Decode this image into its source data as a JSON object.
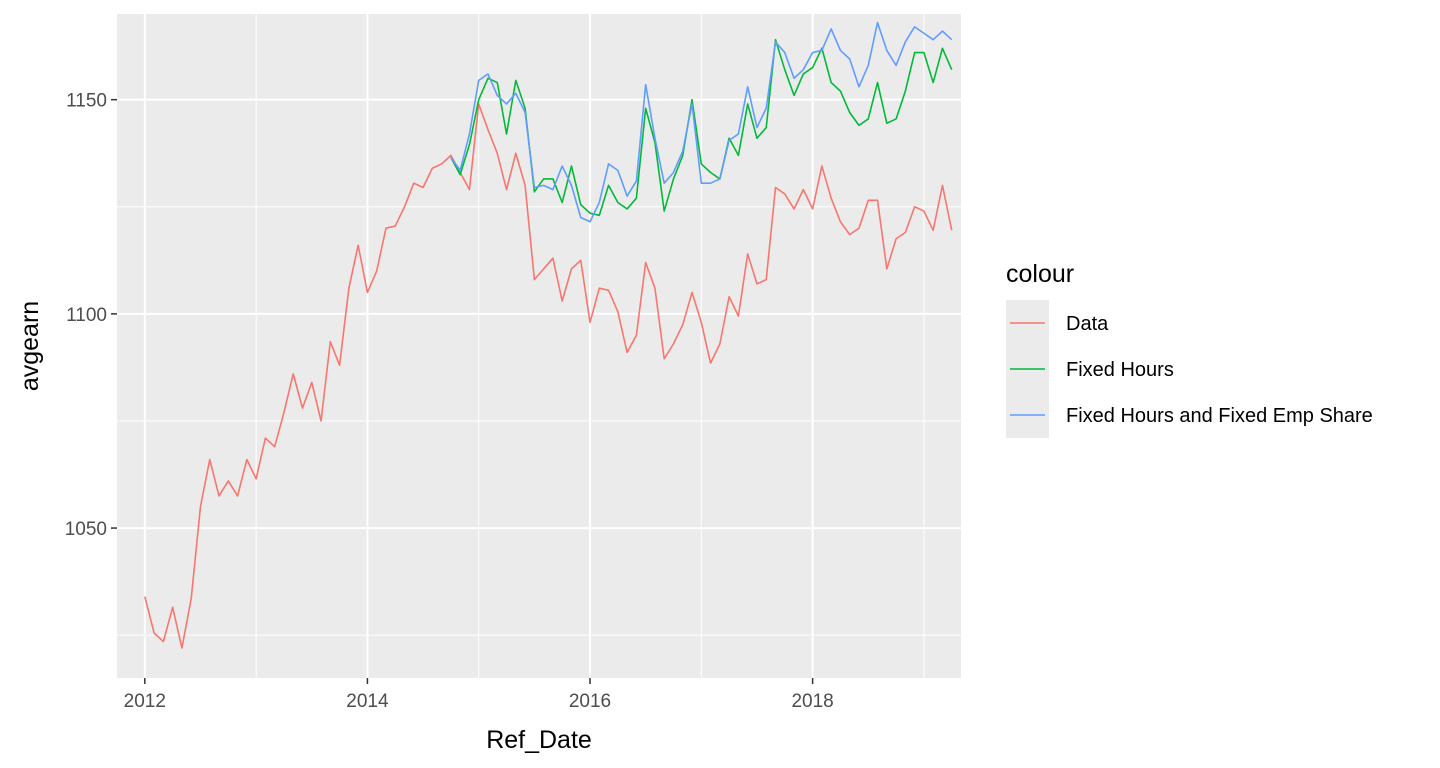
{
  "chart_data": {
    "type": "line",
    "title": "",
    "xlabel": "Ref_Date",
    "ylabel": "avgearn",
    "x_ticks": [
      "2012",
      "2014",
      "2016",
      "2018"
    ],
    "y_ticks": [
      "1050",
      "1100",
      "1150"
    ],
    "xlim": [
      "2011-10",
      "2019-05"
    ],
    "ylim": [
      1015,
      1170
    ],
    "grid": true,
    "legend": {
      "title": "colour",
      "position": "right"
    },
    "series": [
      {
        "name": "Data",
        "color": "#F8766D",
        "points": [
          [
            "2012-01",
            1034
          ],
          [
            "2012-02",
            1025.5
          ],
          [
            "2012-03",
            1023.5
          ],
          [
            "2012-04",
            1031.5
          ],
          [
            "2012-05",
            1022
          ],
          [
            "2012-06",
            1033.5
          ],
          [
            "2012-07",
            1055
          ],
          [
            "2012-08",
            1066
          ],
          [
            "2012-09",
            1057.5
          ],
          [
            "2012-10",
            1061
          ],
          [
            "2012-11",
            1057.5
          ],
          [
            "2012-12",
            1066
          ],
          [
            "2013-01",
            1061.5
          ],
          [
            "2013-02",
            1071
          ],
          [
            "2013-03",
            1069
          ],
          [
            "2013-04",
            1077
          ],
          [
            "2013-05",
            1086
          ],
          [
            "2013-06",
            1078
          ],
          [
            "2013-07",
            1084
          ],
          [
            "2013-08",
            1075
          ],
          [
            "2013-09",
            1093.5
          ],
          [
            "2013-10",
            1088
          ],
          [
            "2013-11",
            1106
          ],
          [
            "2013-12",
            1116
          ],
          [
            "2014-01",
            1105
          ],
          [
            "2014-02",
            1110
          ],
          [
            "2014-03",
            1120
          ],
          [
            "2014-04",
            1120.5
          ],
          [
            "2014-05",
            1125
          ],
          [
            "2014-06",
            1130.5
          ],
          [
            "2014-07",
            1129.5
          ],
          [
            "2014-08",
            1134
          ],
          [
            "2014-09",
            1135
          ],
          [
            "2014-10",
            1137
          ],
          [
            "2014-11",
            1133
          ],
          [
            "2014-12",
            1129
          ],
          [
            "2015-01",
            1149
          ],
          [
            "2015-02",
            1143
          ],
          [
            "2015-03",
            1137.5
          ],
          [
            "2015-04",
            1129
          ],
          [
            "2015-05",
            1137.5
          ],
          [
            "2015-06",
            1130
          ],
          [
            "2015-07",
            1108
          ],
          [
            "2015-08",
            1110.5
          ],
          [
            "2015-09",
            1113
          ],
          [
            "2015-10",
            1103
          ],
          [
            "2015-11",
            1110.5
          ],
          [
            "2015-12",
            1112.5
          ],
          [
            "2016-01",
            1098
          ],
          [
            "2016-02",
            1106
          ],
          [
            "2016-03",
            1105.5
          ],
          [
            "2016-04",
            1100.5
          ],
          [
            "2016-05",
            1091
          ],
          [
            "2016-06",
            1095
          ],
          [
            "2016-07",
            1112
          ],
          [
            "2016-08",
            1106
          ],
          [
            "2016-09",
            1089.5
          ],
          [
            "2016-10",
            1093
          ],
          [
            "2016-11",
            1097.5
          ],
          [
            "2016-12",
            1105
          ],
          [
            "2017-01",
            1098
          ],
          [
            "2017-02",
            1088.5
          ],
          [
            "2017-03",
            1093
          ],
          [
            "2017-04",
            1104
          ],
          [
            "2017-05",
            1099.5
          ],
          [
            "2017-06",
            1114
          ],
          [
            "2017-07",
            1107
          ],
          [
            "2017-08",
            1108
          ],
          [
            "2017-09",
            1129.5
          ],
          [
            "2017-10",
            1128
          ],
          [
            "2017-11",
            1124.5
          ],
          [
            "2017-12",
            1129
          ],
          [
            "2018-01",
            1124.5
          ],
          [
            "2018-02",
            1134.5
          ],
          [
            "2018-03",
            1127
          ],
          [
            "2018-04",
            1121.5
          ],
          [
            "2018-05",
            1118.5
          ],
          [
            "2018-06",
            1120
          ],
          [
            "2018-07",
            1126.5
          ],
          [
            "2018-08",
            1126.5
          ],
          [
            "2018-09",
            1110.5
          ],
          [
            "2018-10",
            1117.5
          ],
          [
            "2018-11",
            1119
          ],
          [
            "2018-12",
            1125
          ],
          [
            "2019-01",
            1124
          ],
          [
            "2019-02",
            1119.5
          ],
          [
            "2019-03",
            1130
          ],
          [
            "2019-04",
            1119.5
          ]
        ]
      },
      {
        "name": "Fixed Hours",
        "color": "#00BA38",
        "points": [
          [
            "2014-10",
            1136.5
          ],
          [
            "2014-11",
            1132.5
          ],
          [
            "2014-12",
            1139.5
          ],
          [
            "2015-01",
            1150
          ],
          [
            "2015-02",
            1155
          ],
          [
            "2015-03",
            1154
          ],
          [
            "2015-04",
            1142
          ],
          [
            "2015-05",
            1154.5
          ],
          [
            "2015-06",
            1148
          ],
          [
            "2015-07",
            1128.5
          ],
          [
            "2015-08",
            1131.5
          ],
          [
            "2015-09",
            1131.5
          ],
          [
            "2015-10",
            1126
          ],
          [
            "2015-11",
            1134.5
          ],
          [
            "2015-12",
            1125.5
          ],
          [
            "2016-01",
            1123.5
          ],
          [
            "2016-02",
            1123
          ],
          [
            "2016-03",
            1130
          ],
          [
            "2016-04",
            1126
          ],
          [
            "2016-05",
            1124.5
          ],
          [
            "2016-06",
            1127
          ],
          [
            "2016-07",
            1148
          ],
          [
            "2016-08",
            1140
          ],
          [
            "2016-09",
            1124
          ],
          [
            "2016-10",
            1131.5
          ],
          [
            "2016-11",
            1137
          ],
          [
            "2016-12",
            1150
          ],
          [
            "2017-01",
            1135
          ],
          [
            "2017-02",
            1133
          ],
          [
            "2017-03",
            1131.5
          ],
          [
            "2017-04",
            1141
          ],
          [
            "2017-05",
            1137
          ],
          [
            "2017-06",
            1149
          ],
          [
            "2017-07",
            1141
          ],
          [
            "2017-08",
            1143.5
          ],
          [
            "2017-09",
            1164
          ],
          [
            "2017-10",
            1157
          ],
          [
            "2017-11",
            1151
          ],
          [
            "2017-12",
            1156
          ],
          [
            "2018-01",
            1157.5
          ],
          [
            "2018-02",
            1162
          ],
          [
            "2018-03",
            1154
          ],
          [
            "2018-04",
            1152
          ],
          [
            "2018-05",
            1147
          ],
          [
            "2018-06",
            1144
          ],
          [
            "2018-07",
            1145.5
          ],
          [
            "2018-08",
            1154
          ],
          [
            "2018-09",
            1144.5
          ],
          [
            "2018-10",
            1145.5
          ],
          [
            "2018-11",
            1152
          ],
          [
            "2018-12",
            1161
          ],
          [
            "2019-01",
            1161
          ],
          [
            "2019-02",
            1154
          ],
          [
            "2019-03",
            1162
          ],
          [
            "2019-04",
            1157
          ]
        ]
      },
      {
        "name": "Fixed Hours and Fixed Emp Share",
        "color": "#619CFF",
        "points": [
          [
            "2014-10",
            1136.5
          ],
          [
            "2014-11",
            1133.5
          ],
          [
            "2014-12",
            1142
          ],
          [
            "2015-01",
            1154.5
          ],
          [
            "2015-02",
            1156
          ],
          [
            "2015-03",
            1151
          ],
          [
            "2015-04",
            1149
          ],
          [
            "2015-05",
            1151.5
          ],
          [
            "2015-06",
            1147
          ],
          [
            "2015-07",
            1129.5
          ],
          [
            "2015-08",
            1130
          ],
          [
            "2015-09",
            1129
          ],
          [
            "2015-10",
            1134.5
          ],
          [
            "2015-11",
            1130
          ],
          [
            "2015-12",
            1122.5
          ],
          [
            "2016-01",
            1121.5
          ],
          [
            "2016-02",
            1126
          ],
          [
            "2016-03",
            1135
          ],
          [
            "2016-04",
            1133.5
          ],
          [
            "2016-05",
            1127.5
          ],
          [
            "2016-06",
            1131
          ],
          [
            "2016-07",
            1153.5
          ],
          [
            "2016-08",
            1141
          ],
          [
            "2016-09",
            1130.5
          ],
          [
            "2016-10",
            1133
          ],
          [
            "2016-11",
            1138
          ],
          [
            "2016-12",
            1149
          ],
          [
            "2017-01",
            1130.5
          ],
          [
            "2017-02",
            1130.5
          ],
          [
            "2017-03",
            1131.5
          ],
          [
            "2017-04",
            1140.5
          ],
          [
            "2017-05",
            1142
          ],
          [
            "2017-06",
            1153
          ],
          [
            "2017-07",
            1143.5
          ],
          [
            "2017-08",
            1148
          ],
          [
            "2017-09",
            1163.5
          ],
          [
            "2017-10",
            1161
          ],
          [
            "2017-11",
            1155
          ],
          [
            "2017-12",
            1157
          ],
          [
            "2018-01",
            1161
          ],
          [
            "2018-02",
            1161.5
          ],
          [
            "2018-03",
            1166.5
          ],
          [
            "2018-04",
            1161.5
          ],
          [
            "2018-05",
            1159.5
          ],
          [
            "2018-06",
            1153
          ],
          [
            "2018-07",
            1158
          ],
          [
            "2018-08",
            1168
          ],
          [
            "2018-09",
            1161.5
          ],
          [
            "2018-10",
            1158
          ],
          [
            "2018-11",
            1163.5
          ],
          [
            "2018-12",
            1167
          ],
          [
            "2019-01",
            1165.5
          ],
          [
            "2019-02",
            1164
          ],
          [
            "2019-03",
            1166
          ],
          [
            "2019-04",
            1164
          ]
        ]
      }
    ]
  }
}
